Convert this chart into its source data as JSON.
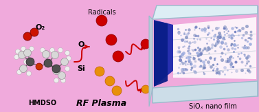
{
  "background_color": "#f0aadc",
  "label_HMDSO": "HMDSO",
  "label_O2": "O₂",
  "label_O": "O",
  "label_Si": "Si",
  "label_Radicals": "Radicals",
  "label_RF_Plasma": "RF Plasma",
  "label_SiOx": "SiOₓ nano film",
  "fig_width": 3.77,
  "fig_height": 1.63,
  "dpi": 100,
  "red_dot_color": "#cc0000",
  "orange_dot_color": "#e8900a",
  "blue_dot_color": "#8899cc",
  "dark_blue_film": "#1122aa",
  "glass_face_color": "#ddeef5",
  "glass_edge_color": "#b0ccd8",
  "glass_top_color": "#eef6fa",
  "glass_side_color": "#c8dde8"
}
